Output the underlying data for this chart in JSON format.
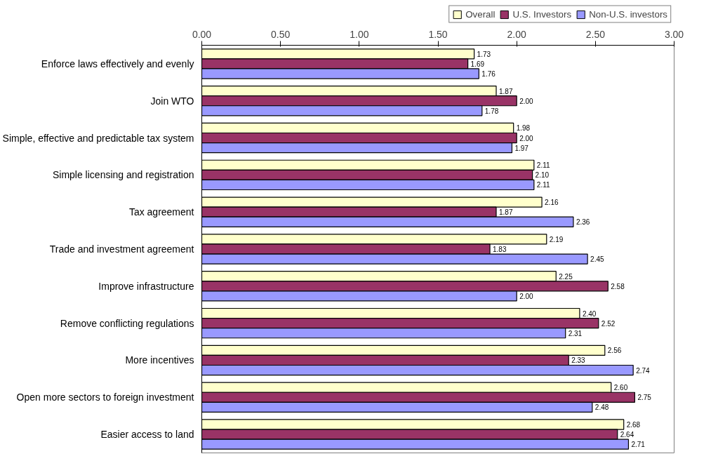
{
  "chart_data": {
    "type": "bar",
    "orientation": "horizontal",
    "categories": [
      "Enforce laws effectively and evenly",
      "Join WTO",
      "Simple, effective and predictable tax system",
      "Simple licensing and registration",
      "Tax agreement",
      "Trade and investment agreement",
      "Improve infrastructure",
      "Remove conflicting regulations",
      "More incentives",
      "Open more sectors to foreign investment",
      "Easier access to land"
    ],
    "series": [
      {
        "name": "Overall",
        "color": "#ffffcc",
        "values": [
          1.73,
          1.87,
          1.98,
          2.11,
          2.16,
          2.19,
          2.25,
          2.4,
          2.56,
          2.6,
          2.68
        ],
        "value_labels": [
          "1.73",
          "1.87",
          "1.98",
          "2.11",
          "2.16",
          "2.19",
          "2.25",
          "2.40",
          "2.56",
          "2.60",
          "2.68"
        ]
      },
      {
        "name": "U.S. Investors",
        "color": "#993366",
        "values": [
          1.69,
          2.0,
          2.0,
          2.1,
          1.87,
          1.83,
          2.58,
          2.52,
          2.33,
          2.75,
          2.64
        ],
        "value_labels": [
          "1.69",
          "2.00",
          "2.00",
          "2.10",
          "1.87",
          "1.83",
          "2.58",
          "2.52",
          "2.33",
          "2.75",
          "2.64"
        ]
      },
      {
        "name": "Non-U.S. investors",
        "color": "#9999ff",
        "values": [
          1.76,
          1.78,
          1.97,
          2.11,
          2.36,
          2.45,
          2.0,
          2.31,
          2.74,
          2.48,
          2.71
        ],
        "value_labels": [
          "1.76",
          "1.78",
          "1.97",
          "2.11",
          "2.36",
          "2.45",
          "2.00",
          "2.31",
          "2.74",
          "2.48",
          "2.71"
        ]
      }
    ],
    "xlim": [
      0,
      3
    ],
    "xticks": [
      {
        "value": 0,
        "label": "0.00"
      },
      {
        "value": 0.5,
        "label": "0.50"
      },
      {
        "value": 1,
        "label": "1.00"
      },
      {
        "value": 1.5,
        "label": "1.50"
      },
      {
        "value": 2,
        "label": "2.00"
      },
      {
        "value": 2.5,
        "label": "2.50"
      },
      {
        "value": 3,
        "label": "3.00"
      }
    ],
    "data_labels": true,
    "legend": "top",
    "grid": false
  }
}
